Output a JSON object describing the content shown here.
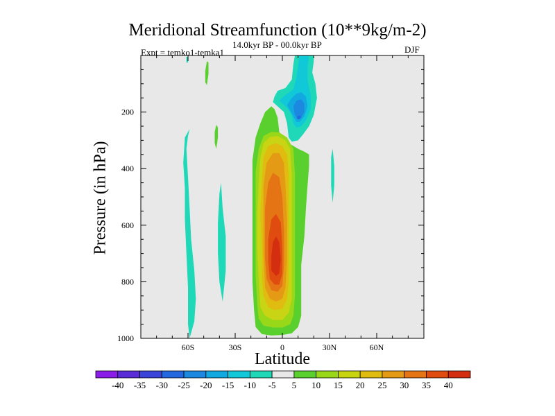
{
  "chart_data": {
    "type": "heatmap",
    "title": "Meridional Streamfunction (10**9kg/m-2)",
    "subtitle_left": "Expt = temko1-temka1",
    "subtitle_center": "14.0kyr BP - 00.0kyr BP",
    "subtitle_right": "DJF",
    "xlabel": "Latitude",
    "ylabel": "Pressure (in hPa)",
    "xlim": [
      -90,
      90
    ],
    "ylim": [
      1000,
      0
    ],
    "x_ticks": [
      {
        "value": -60,
        "label": "60S"
      },
      {
        "value": -30,
        "label": "30S"
      },
      {
        "value": 0,
        "label": "0"
      },
      {
        "value": 30,
        "label": "30N"
      },
      {
        "value": 60,
        "label": "60N"
      }
    ],
    "y_ticks": [
      {
        "value": 200,
        "label": "200"
      },
      {
        "value": 400,
        "label": "400"
      },
      {
        "value": 600,
        "label": "600"
      },
      {
        "value": 800,
        "label": "800"
      },
      {
        "value": 1000,
        "label": "1000"
      }
    ],
    "colorbar": {
      "labels": [
        "-40",
        "-35",
        "-30",
        "-25",
        "-20",
        "-15",
        "-10",
        "-5",
        "5",
        "10",
        "15",
        "20",
        "25",
        "30",
        "35",
        "40"
      ],
      "colors": [
        "#8a1ee8",
        "#5a2cd8",
        "#3a44d8",
        "#2468e0",
        "#1c88e0",
        "#12a8e0",
        "#10c8d8",
        "#1ed8b8",
        "#e8e8e8",
        "#5ad02e",
        "#98d818",
        "#c8d410",
        "#e0bc10",
        "#e49a14",
        "#e47414",
        "#e04c10",
        "#d42e10"
      ]
    },
    "background_color": "#e8e8e8",
    "contours": [
      {
        "name": "cell-sh-midlat",
        "color": "#1ed8b8",
        "points": [
          [
            -59,
            1000
          ],
          [
            -56,
            940
          ],
          [
            -55,
            860
          ],
          [
            -56,
            760
          ],
          [
            -58,
            650
          ],
          [
            -59,
            540
          ],
          [
            -60,
            430
          ],
          [
            -61,
            330
          ],
          [
            -60,
            285
          ],
          [
            -59,
            260
          ],
          [
            -62,
            290
          ],
          [
            -63,
            380
          ],
          [
            -62,
            470
          ],
          [
            -62,
            580
          ],
          [
            -61,
            700
          ],
          [
            -60,
            820
          ],
          [
            -60,
            900
          ],
          [
            -60,
            950
          ]
        ]
      },
      {
        "name": "cell-sh-thin",
        "color": "#1ed8b8",
        "points": [
          [
            -38,
            870
          ],
          [
            -36,
            760
          ],
          [
            -36,
            640
          ],
          [
            -38,
            540
          ],
          [
            -39,
            450
          ],
          [
            -40,
            490
          ],
          [
            -41,
            590
          ],
          [
            -41,
            700
          ],
          [
            -40,
            800
          ]
        ]
      },
      {
        "name": "streak-sh-upper",
        "color": "#5ad02e",
        "points": [
          [
            -41,
            255
          ],
          [
            -41,
            290
          ],
          [
            -42,
            330
          ],
          [
            -43,
            310
          ],
          [
            -43,
            270
          ],
          [
            -42,
            245
          ]
        ]
      },
      {
        "name": "streak-top-green",
        "color": "#5ad02e",
        "points": [
          [
            -47,
            25
          ],
          [
            -47,
            65
          ],
          [
            -48,
            105
          ],
          [
            -49,
            95
          ],
          [
            -49,
            55
          ],
          [
            -48,
            20
          ]
        ]
      },
      {
        "name": "streak-top-cyan",
        "color": "#1ed8b8",
        "points": [
          [
            -60,
            5
          ],
          [
            -60,
            25
          ],
          [
            -61,
            25
          ],
          [
            -61,
            5
          ]
        ]
      },
      {
        "name": "cell-nh-weak",
        "color": "#1ed8b8",
        "points": [
          [
            32,
            520
          ],
          [
            33,
            460
          ],
          [
            33,
            390
          ],
          [
            32,
            330
          ],
          [
            31,
            360
          ],
          [
            31,
            460
          ]
        ]
      },
      {
        "name": "trop-5",
        "color": "#5ad02e",
        "points": [
          [
            -17,
            960
          ],
          [
            -13,
            985
          ],
          [
            -7,
            990
          ],
          [
            0,
            988
          ],
          [
            6,
            982
          ],
          [
            10,
            960
          ],
          [
            12,
            920
          ],
          [
            12,
            840
          ],
          [
            12,
            740
          ],
          [
            14,
            640
          ],
          [
            15,
            540
          ],
          [
            16,
            460
          ],
          [
            17,
            390
          ],
          [
            17,
            350
          ],
          [
            14,
            340
          ],
          [
            10,
            330
          ],
          [
            4,
            310
          ],
          [
            0,
            285
          ],
          [
            -2,
            270
          ],
          [
            -3,
            220
          ],
          [
            -5,
            190
          ],
          [
            -7,
            180
          ],
          [
            -11,
            200
          ],
          [
            -14,
            240
          ],
          [
            -17,
            290
          ],
          [
            -19,
            370
          ],
          [
            -19,
            450
          ],
          [
            -19,
            560
          ],
          [
            -19,
            680
          ],
          [
            -19,
            800
          ],
          [
            -18,
            900
          ]
        ]
      },
      {
        "name": "trop-10",
        "color": "#98d818",
        "points": [
          [
            -15,
            930
          ],
          [
            -12,
            955
          ],
          [
            -6,
            962
          ],
          [
            0,
            962
          ],
          [
            5,
            950
          ],
          [
            7,
            920
          ],
          [
            8,
            850
          ],
          [
            8,
            720
          ],
          [
            8,
            560
          ],
          [
            8,
            420
          ],
          [
            7,
            330
          ],
          [
            3,
            290
          ],
          [
            -2,
            272
          ],
          [
            -7,
            270
          ],
          [
            -12,
            285
          ],
          [
            -15,
            330
          ],
          [
            -17,
            410
          ],
          [
            -17,
            520
          ],
          [
            -17,
            650
          ],
          [
            -17,
            780
          ],
          [
            -16,
            880
          ]
        ]
      },
      {
        "name": "trop-15",
        "color": "#c8d414",
        "points": [
          [
            -14,
            890
          ],
          [
            -11,
            920
          ],
          [
            -6,
            935
          ],
          [
            0,
            935
          ],
          [
            4,
            910
          ],
          [
            6,
            860
          ],
          [
            6,
            720
          ],
          [
            6,
            560
          ],
          [
            6,
            420
          ],
          [
            5,
            330
          ],
          [
            2,
            300
          ],
          [
            -3,
            285
          ],
          [
            -8,
            288
          ],
          [
            -12,
            310
          ],
          [
            -14,
            360
          ],
          [
            -15,
            450
          ],
          [
            -16,
            560
          ],
          [
            -16,
            680
          ],
          [
            -15,
            800
          ]
        ]
      },
      {
        "name": "trop-20",
        "color": "#e0bc10",
        "points": [
          [
            -12,
            850
          ],
          [
            -9,
            890
          ],
          [
            -5,
            900
          ],
          [
            0,
            895
          ],
          [
            3,
            860
          ],
          [
            4,
            800
          ],
          [
            4,
            680
          ],
          [
            4,
            540
          ],
          [
            4,
            420
          ],
          [
            3,
            350
          ],
          [
            0,
            320
          ],
          [
            -4,
            310
          ],
          [
            -9,
            320
          ],
          [
            -12,
            360
          ],
          [
            -13,
            440
          ],
          [
            -14,
            560
          ],
          [
            -13,
            690
          ],
          [
            -13,
            790
          ]
        ]
      },
      {
        "name": "trop-25",
        "color": "#e49a14",
        "points": [
          [
            -11,
            820
          ],
          [
            -8,
            860
          ],
          [
            -4,
            870
          ],
          [
            0,
            860
          ],
          [
            2,
            820
          ],
          [
            3,
            720
          ],
          [
            3,
            580
          ],
          [
            2,
            460
          ],
          [
            1,
            380
          ],
          [
            -2,
            345
          ],
          [
            -6,
            345
          ],
          [
            -10,
            380
          ],
          [
            -12,
            460
          ],
          [
            -12,
            580
          ],
          [
            -12,
            700
          ]
        ]
      },
      {
        "name": "trop-30",
        "color": "#e47414",
        "points": [
          [
            -10,
            790
          ],
          [
            -7,
            830
          ],
          [
            -3,
            835
          ],
          [
            0,
            815
          ],
          [
            1,
            740
          ],
          [
            1,
            620
          ],
          [
            0,
            500
          ],
          [
            -2,
            430
          ],
          [
            -6,
            415
          ],
          [
            -9,
            450
          ],
          [
            -11,
            540
          ],
          [
            -11,
            640
          ],
          [
            -11,
            720
          ]
        ]
      },
      {
        "name": "trop-35",
        "color": "#e04c10",
        "points": [
          [
            -8,
            790
          ],
          [
            -5,
            810
          ],
          [
            -2,
            810
          ],
          [
            0,
            770
          ],
          [
            0,
            680
          ],
          [
            -1,
            590
          ],
          [
            -4,
            560
          ],
          [
            -7,
            580
          ],
          [
            -9,
            650
          ],
          [
            -9,
            730
          ]
        ]
      },
      {
        "name": "trop-40",
        "color": "#d42e10",
        "points": [
          [
            -7,
            760
          ],
          [
            -4,
            780
          ],
          [
            -2,
            770
          ],
          [
            -1,
            720
          ],
          [
            -2,
            660
          ],
          [
            -4,
            640
          ],
          [
            -6,
            660
          ],
          [
            -7,
            710
          ]
        ]
      },
      {
        "name": "nh-upper-minus5",
        "color": "#1ed8b8",
        "points": [
          [
            -6,
            165
          ],
          [
            -5,
            145
          ],
          [
            -3,
            125
          ],
          [
            2,
            115
          ],
          [
            6,
            85
          ],
          [
            7,
            30
          ],
          [
            8,
            0
          ],
          [
            20,
            0
          ],
          [
            20,
            20
          ],
          [
            19,
            60
          ],
          [
            21,
            100
          ],
          [
            22,
            150
          ],
          [
            20,
            210
          ],
          [
            17,
            250
          ],
          [
            13,
            280
          ],
          [
            10,
            300
          ],
          [
            6,
            305
          ],
          [
            4,
            290
          ],
          [
            3,
            240
          ],
          [
            1,
            200
          ],
          [
            -3,
            180
          ]
        ]
      },
      {
        "name": "nh-upper-minus10",
        "color": "#10c8d8",
        "points": [
          [
            -2,
            160
          ],
          [
            2,
            140
          ],
          [
            7,
            120
          ],
          [
            9,
            80
          ],
          [
            10,
            40
          ],
          [
            11,
            0
          ],
          [
            17,
            0
          ],
          [
            16,
            40
          ],
          [
            16,
            90
          ],
          [
            18,
            140
          ],
          [
            18,
            190
          ],
          [
            15,
            230
          ],
          [
            12,
            250
          ],
          [
            9,
            255
          ],
          [
            7,
            240
          ],
          [
            6,
            210
          ],
          [
            3,
            185
          ]
        ]
      },
      {
        "name": "nh-upper-minus15",
        "color": "#12a8e0",
        "points": [
          [
            3,
            175
          ],
          [
            6,
            150
          ],
          [
            9,
            135
          ],
          [
            12,
            130
          ],
          [
            15,
            145
          ],
          [
            16,
            180
          ],
          [
            14,
            215
          ],
          [
            11,
            235
          ],
          [
            9,
            235
          ],
          [
            7,
            215
          ],
          [
            5,
            195
          ]
        ]
      },
      {
        "name": "nh-upper-minus20",
        "color": "#1c88e0",
        "points": [
          [
            7,
            180
          ],
          [
            9,
            160
          ],
          [
            12,
            155
          ],
          [
            14,
            170
          ],
          [
            14,
            200
          ],
          [
            12,
            220
          ],
          [
            10,
            225
          ],
          [
            8,
            210
          ]
        ]
      },
      {
        "name": "nh-upper-minus25",
        "color": "#2468e0",
        "points": [
          [
            9,
            220
          ],
          [
            10,
            214
          ],
          [
            11,
            212
          ],
          [
            12,
            218
          ],
          [
            11,
            225
          ],
          [
            10,
            226
          ]
        ]
      }
    ]
  }
}
